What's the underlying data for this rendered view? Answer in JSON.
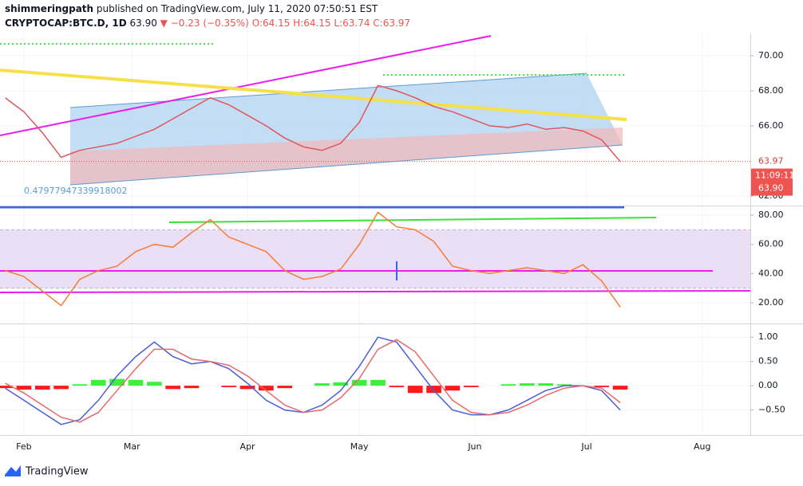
{
  "header": {
    "author": "shimmeringpath",
    "published": "published on TradingView.com, July 11, 2020 07:50:51 EST",
    "symbol": "CRYPTOCAP:BTC.D, 1D",
    "last": "63.90",
    "arrow": "▼",
    "change": "−0.23 (−0.35%)",
    "ohlc": "O:64.15 H:64.15 L:63.74 C:63.97"
  },
  "footer": "TradingView",
  "chart_data": [
    {
      "type": "line",
      "x": [
        27,
        32,
        37,
        42,
        47,
        52,
        57,
        62,
        67,
        72,
        77,
        82,
        87,
        92,
        97,
        102,
        107,
        112,
        117,
        122,
        127,
        132,
        137,
        142,
        147,
        152,
        157,
        162,
        167,
        172,
        177,
        182,
        187,
        192
      ],
      "series": [
        {
          "color": "#e0565b",
          "values": [
            67.6,
            66.8,
            65.6,
            64.2,
            64.6,
            64.8,
            65.0,
            65.4,
            65.8,
            66.4,
            67.0,
            67.6,
            67.2,
            66.6,
            66.0,
            65.3,
            64.8,
            64.6,
            65.0,
            66.2,
            68.3,
            68.0,
            67.6,
            67.1,
            66.8,
            66.4,
            66.0,
            65.9,
            66.1,
            65.8,
            65.9,
            65.7,
            65.2,
            63.97
          ]
        }
      ],
      "ylim": [
        61.45,
        71.27
      ],
      "yticks": [
        {
          "value": 62,
          "label": "62.00"
        },
        {
          "value": 66,
          "label": "66.00"
        },
        {
          "value": 68,
          "label": "68.00"
        },
        {
          "value": 70,
          "label": "70.00"
        }
      ],
      "close": 63.97,
      "countdown": "11:09:11",
      "last": {
        "value": 63.9,
        "label": "63.90"
      },
      "annotation": "0.47977947339918002"
    },
    {
      "type": "line",
      "x": [
        27,
        32,
        37,
        42,
        47,
        52,
        57,
        62,
        67,
        72,
        77,
        82,
        87,
        92,
        97,
        102,
        107,
        112,
        117,
        122,
        127,
        132,
        137,
        142,
        147,
        152,
        157,
        162,
        167,
        172,
        177,
        182,
        187,
        192
      ],
      "series": [
        {
          "color": "#f57c3a",
          "values": [
            42,
            38,
            28,
            18,
            36,
            42,
            45,
            55,
            60,
            58,
            68,
            77,
            65,
            60,
            55,
            42,
            36,
            38,
            43,
            60,
            82,
            72,
            70,
            62,
            45,
            42,
            40,
            42,
            44,
            42,
            40,
            46,
            35,
            17
          ]
        }
      ],
      "band": [
        30,
        70
      ],
      "band_color": "#eadff5",
      "ylim": [
        6.3,
        85.5
      ],
      "yticks": [
        {
          "value": 20,
          "label": "20.00"
        },
        {
          "value": 40,
          "label": "40.00"
        },
        {
          "value": 60,
          "label": "60.00"
        },
        {
          "value": 80,
          "label": "80.00"
        }
      ]
    },
    {
      "type": "line",
      "x": [
        27,
        32,
        37,
        42,
        47,
        52,
        57,
        62,
        67,
        72,
        77,
        82,
        87,
        92,
        97,
        102,
        107,
        112,
        117,
        122,
        127,
        132,
        137,
        142,
        147,
        152,
        157,
        162,
        167,
        172,
        177,
        182,
        187,
        192
      ],
      "series": [
        {
          "color": "#4a5fd8",
          "values": [
            -0.05,
            -0.3,
            -0.55,
            -0.8,
            -0.7,
            -0.3,
            0.2,
            0.6,
            0.9,
            0.6,
            0.45,
            0.5,
            0.35,
            0.05,
            -0.3,
            -0.5,
            -0.55,
            -0.4,
            -0.1,
            0.4,
            1.0,
            0.9,
            0.4,
            -0.1,
            -0.5,
            -0.6,
            -0.6,
            -0.5,
            -0.3,
            -0.1,
            0.0,
            0.0,
            -0.1,
            -0.5
          ]
        },
        {
          "color": "#e86a6a",
          "values": [
            0.05,
            -0.15,
            -0.4,
            -0.65,
            -0.75,
            -0.55,
            -0.1,
            0.35,
            0.75,
            0.75,
            0.55,
            0.5,
            0.42,
            0.2,
            -0.1,
            -0.4,
            -0.55,
            -0.5,
            -0.25,
            0.15,
            0.75,
            0.95,
            0.7,
            0.2,
            -0.3,
            -0.55,
            -0.6,
            -0.55,
            -0.4,
            -0.2,
            -0.05,
            0.0,
            -0.05,
            -0.35
          ]
        }
      ],
      "histogram": {
        "values": [
          -0.05,
          -0.08,
          -0.08,
          -0.07,
          0.03,
          0.12,
          0.14,
          0.12,
          0.08,
          -0.07,
          -0.05,
          0,
          -0.03,
          -0.07,
          -0.1,
          -0.05,
          0,
          0.05,
          0.07,
          0.12,
          0.12,
          -0.03,
          -0.15,
          -0.15,
          -0.1,
          -0.03,
          0,
          0.03,
          0.05,
          0.05,
          0.03,
          0,
          -0.03,
          -0.08
        ],
        "up_color": "#3ef03e",
        "down_color": "#ff1a1a"
      },
      "ylim": [
        -1.0,
        1.25
      ],
      "yticks": [
        {
          "value": -0.5,
          "label": "−0.50"
        },
        {
          "value": 0,
          "label": "0.00"
        },
        {
          "value": 0.5,
          "label": "0.50"
        },
        {
          "value": 1,
          "label": "1.00"
        }
      ],
      "xlim": [
        25.6,
        226.9
      ],
      "xticks": [
        {
          "value": 32,
          "label": "Feb"
        },
        {
          "value": 61,
          "label": "Mar"
        },
        {
          "value": 92,
          "label": "Apr"
        },
        {
          "value": 122,
          "label": "May"
        },
        {
          "value": 153,
          "label": "Jun"
        },
        {
          "value": 183,
          "label": "Jul"
        },
        {
          "value": 214,
          "label": "Aug"
        }
      ]
    }
  ]
}
